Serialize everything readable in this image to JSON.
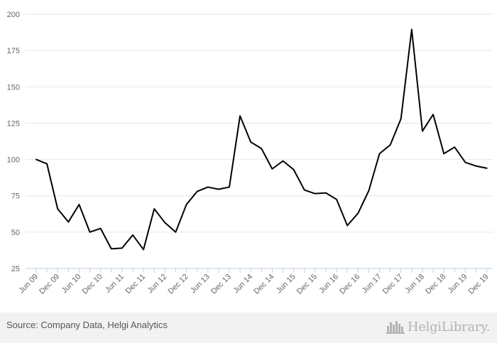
{
  "chart_data": {
    "type": "line",
    "categories": [
      "Jun 09",
      "Dec 09",
      "Jun 10",
      "Dec 10",
      "Jun 11",
      "Dec 11",
      "Jun 12",
      "Dec 12",
      "Jun 13",
      "Dec 13",
      "Jun 14",
      "Dec 14",
      "Jun 15",
      "Dec 15",
      "Jun 16",
      "Dec 16",
      "Jun 17",
      "Dec 17",
      "Jun 18",
      "Dec 18",
      "Jun 19",
      "Dec 19"
    ],
    "x": [
      "Jun 09",
      "Sep 09",
      "Dec 09",
      "Mar 10",
      "Jun 10",
      "Sep 10",
      "Dec 10",
      "Mar 11",
      "Jun 11",
      "Sep 11",
      "Dec 11",
      "Mar 12",
      "Jun 12",
      "Sep 12",
      "Dec 12",
      "Mar 13",
      "Jun 13",
      "Sep 13",
      "Dec 13",
      "Mar 14",
      "Jun 14",
      "Sep 14",
      "Dec 14",
      "Mar 15",
      "Jun 15",
      "Sep 15",
      "Dec 15",
      "Mar 16",
      "Jun 16",
      "Sep 16",
      "Dec 16",
      "Mar 17",
      "Jun 17",
      "Sep 17",
      "Dec 17",
      "Mar 18",
      "Jun 18",
      "Sep 18",
      "Dec 18",
      "Mar 19",
      "Jun 19",
      "Sep 19",
      "Dec 19"
    ],
    "series": [
      {
        "values": [
          100,
          97,
          66,
          57,
          69,
          50,
          52.5,
          38.5,
          39,
          48,
          38,
          66,
          56.5,
          50,
          69,
          78,
          81,
          79.5,
          81,
          130,
          112,
          107.5,
          93.5,
          99,
          93,
          79,
          76.5,
          77,
          72.5,
          54.5,
          63,
          78.5,
          104,
          110,
          128,
          189.5,
          119.5,
          131,
          104,
          108.5,
          98,
          95.5,
          94
        ],
        "color": "#000000"
      }
    ],
    "yticks": [
      25,
      50,
      75,
      100,
      125,
      150,
      175,
      200
    ],
    "ylim": [
      25,
      200
    ],
    "grid": true,
    "legend": "none",
    "title": "",
    "xlabel": "",
    "ylabel": ""
  },
  "footer": {
    "source": "Source: Company Data, Helgi Analytics",
    "logo_text": "HelgiLibrary.",
    "logo_icon": "city-skyline-icon",
    "logo_color": "#b3b3b3"
  }
}
